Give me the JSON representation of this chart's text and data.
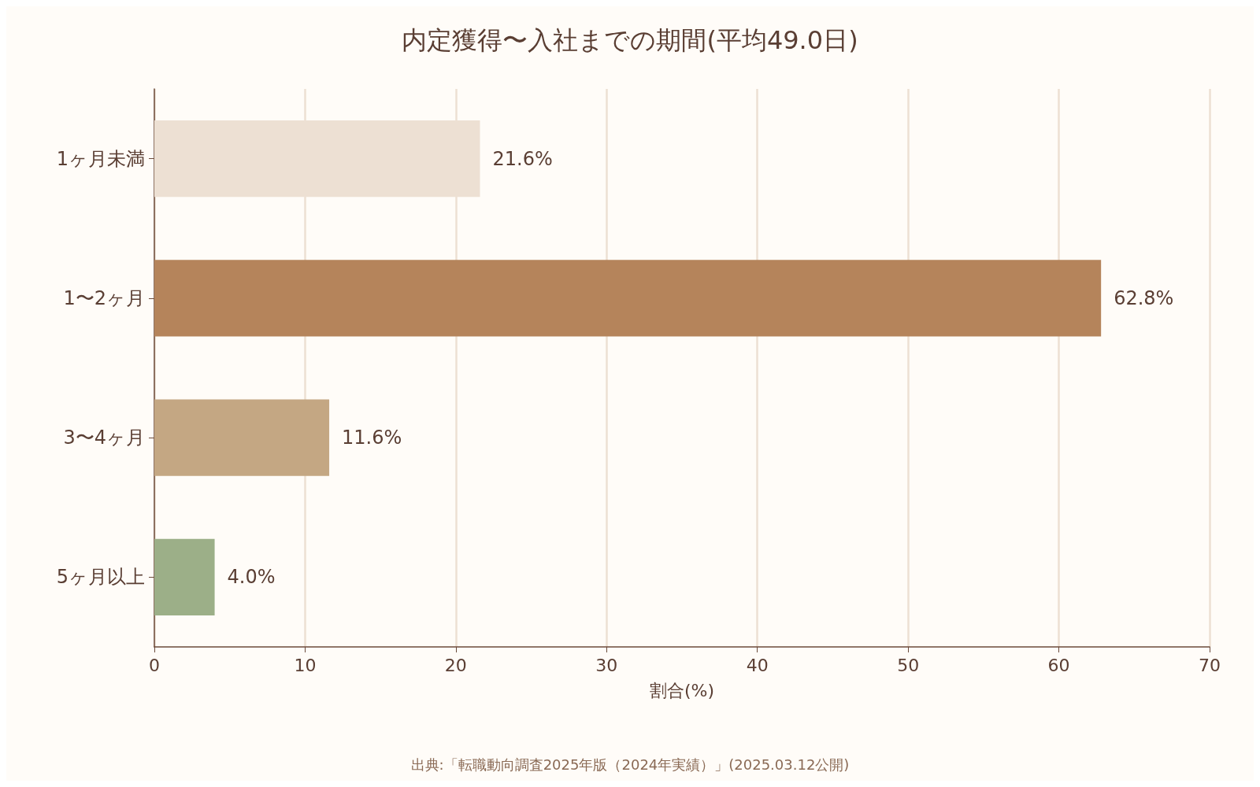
{
  "chart_data": {
    "type": "bar",
    "orientation": "horizontal",
    "title": "内定獲得〜入社までの期間(平均49.0日)",
    "xlabel": "割合(%)",
    "categories": [
      "1ヶ月未満",
      "1〜2ヶ月",
      "3〜4ヶ月",
      "5ヶ月以上"
    ],
    "values": [
      21.6,
      62.8,
      11.6,
      4.0
    ],
    "value_labels": [
      "21.6%",
      "62.8%",
      "11.6%",
      "4.0%"
    ],
    "colors": [
      "#ede0d3",
      "#b5845b",
      "#c4a783",
      "#9caf88"
    ],
    "xlim": [
      0,
      70
    ],
    "xticks": [
      0,
      10,
      20,
      30,
      40,
      50,
      60,
      70
    ],
    "grid": "x",
    "annotations": [
      "出典:「転職動向調査2025年版（2024年実績）」(2025.03.12公開)"
    ]
  }
}
